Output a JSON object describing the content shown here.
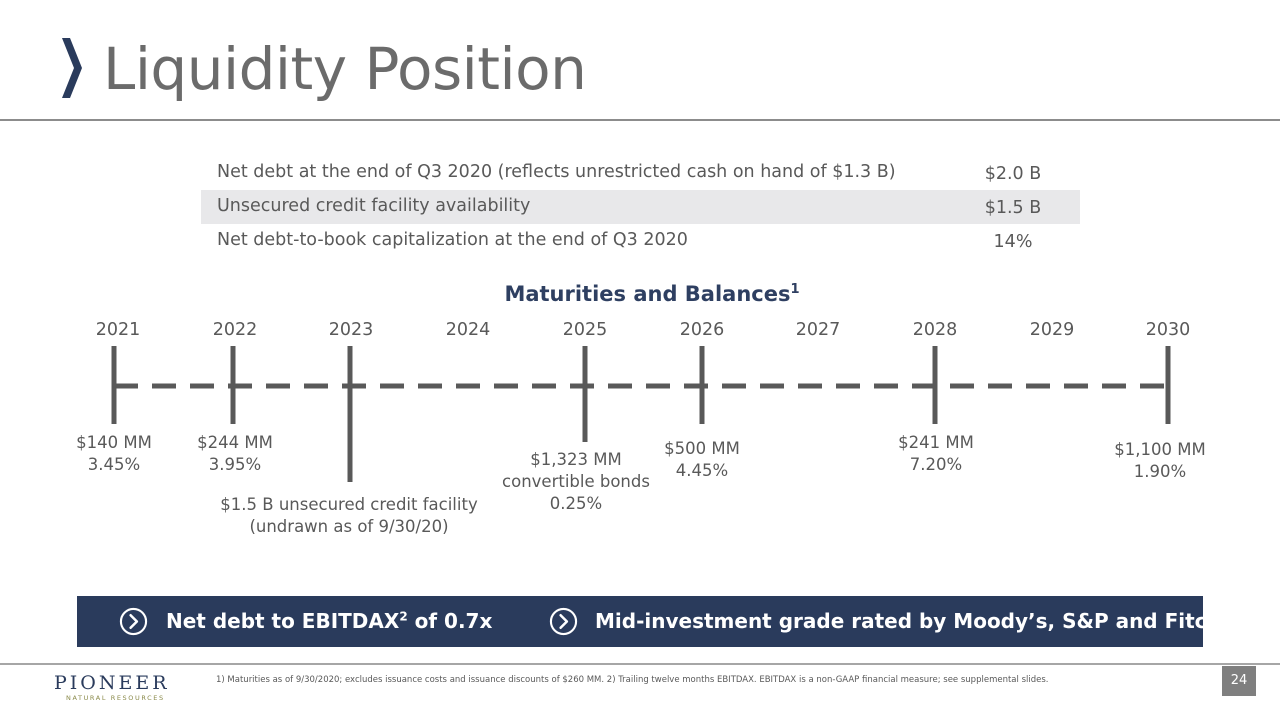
{
  "slide": {
    "title": "Liquidity Position",
    "page_number": "24"
  },
  "stats": [
    {
      "label": "Net debt at the end of Q3 2020 (reflects unrestricted cash on hand of $1.3 B)",
      "value": "$2.0 B"
    },
    {
      "label": "Unsecured credit facility availability",
      "value": "$1.5 B"
    },
    {
      "label": "Net debt-to-book capitalization at the end of Q3 2020",
      "value": "14%"
    }
  ],
  "maturities": {
    "title": "Maturities and Balances",
    "title_sup": "1",
    "years": [
      "2021",
      "2022",
      "2023",
      "2024",
      "2025",
      "2026",
      "2027",
      "2028",
      "2029",
      "2030"
    ],
    "items": [
      {
        "year": "2021",
        "line1": "$140 MM",
        "line2": "3.45%",
        "line3": ""
      },
      {
        "year": "2022",
        "line1": "$244 MM",
        "line2": "3.95%",
        "line3": ""
      },
      {
        "year": "2023",
        "line1": "$1.5 B unsecured credit facility",
        "line2": "(undrawn as of 9/30/20)",
        "line3": ""
      },
      {
        "year": "2025",
        "line1": "$1,323 MM",
        "line2": "convertible bonds",
        "line3": "0.25%"
      },
      {
        "year": "2026",
        "line1": "$500 MM",
        "line2": "4.45%",
        "line3": ""
      },
      {
        "year": "2028",
        "line1": "$241 MM",
        "line2": "7.20%",
        "line3": ""
      },
      {
        "year": "2030",
        "line1": "$1,100 MM",
        "line2": "1.90%",
        "line3": ""
      }
    ]
  },
  "banner": {
    "left_text": "Net debt to EBITDAX",
    "left_sup": "2",
    "left_suffix": " of 0.7x",
    "right_text": "Mid-investment grade rated by Moody’s, S&P and Fitch",
    "icon": "chevron-right-circle-icon"
  },
  "footer": {
    "logo_main": "PIONEER",
    "logo_sub": "NATURAL RESOURCES",
    "footnote": "1) Maturities as of 9/30/2020; excludes issuance costs and issuance discounts of $260 MM.  2) Trailing twelve months EBITDAX. EBITDAX is a non-GAAP financial measure; see supplemental slides."
  },
  "colors": {
    "navy": "#2a3b5c",
    "title_gray": "#6b6b6b",
    "timeline_gray": "#595959",
    "row_shade": "#e8e8ea"
  }
}
